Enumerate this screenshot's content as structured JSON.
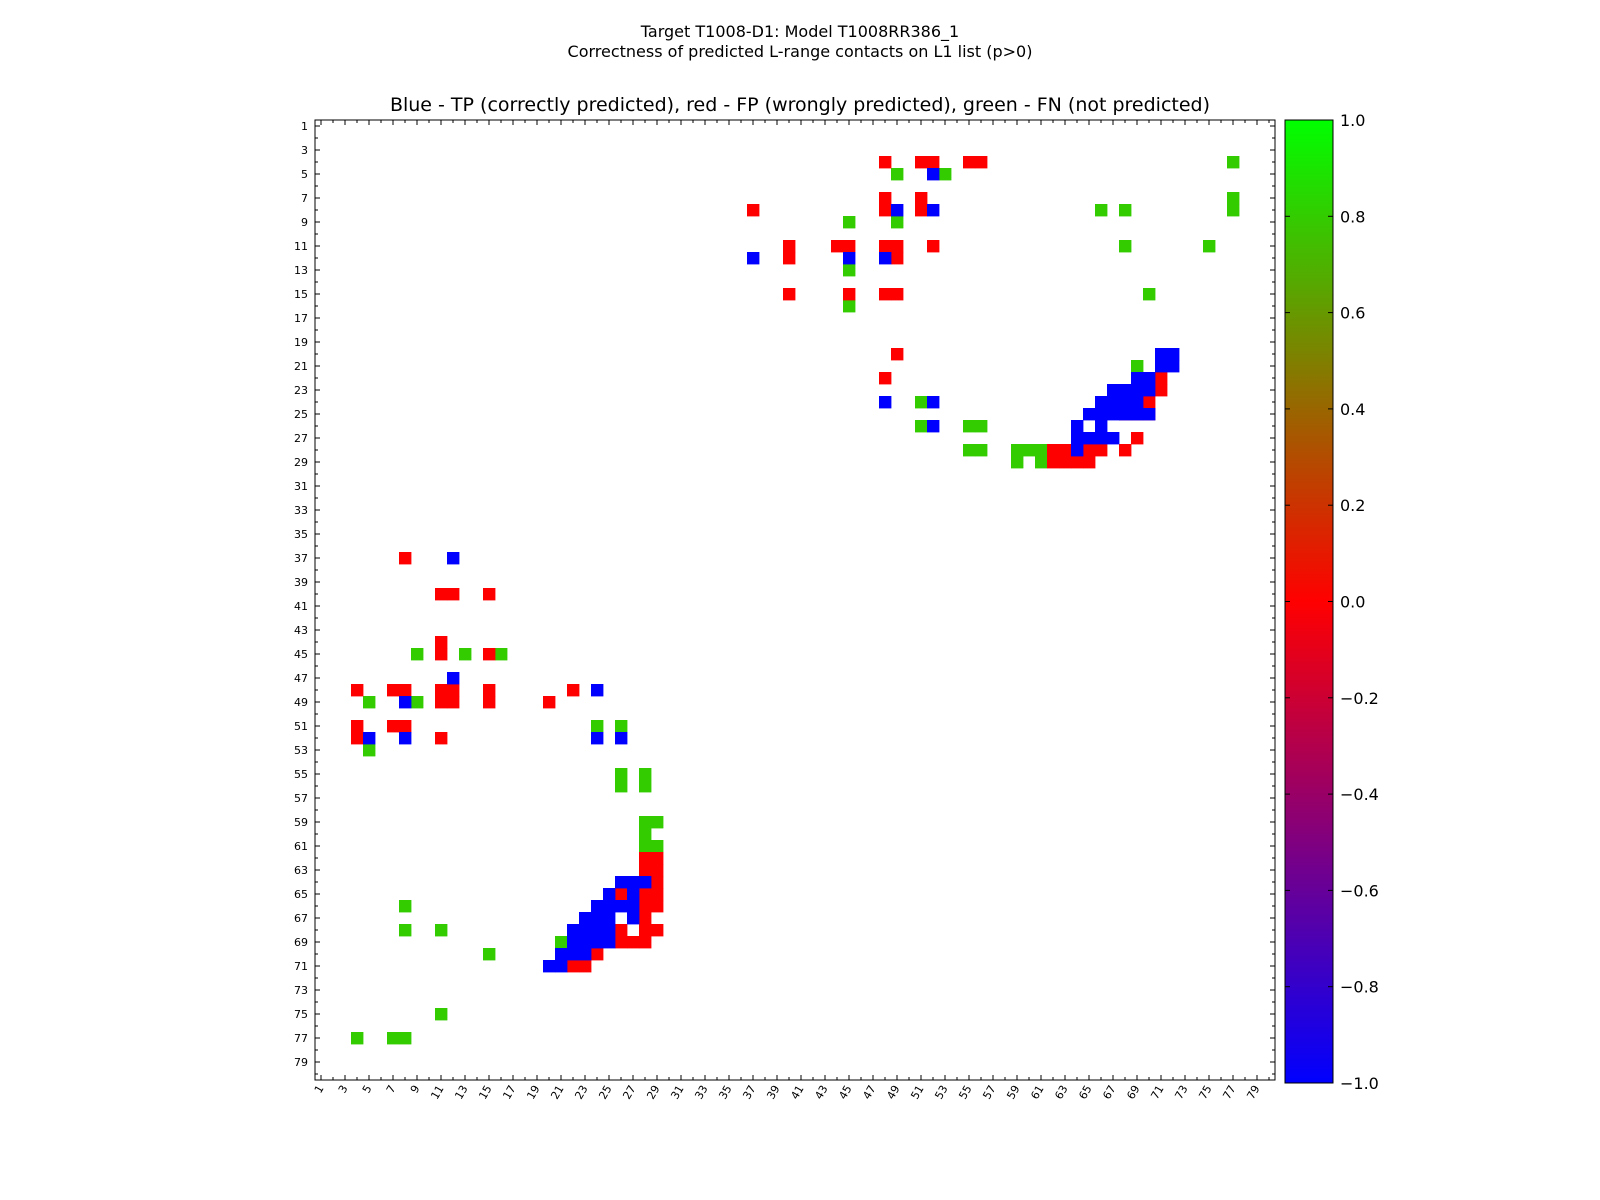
{
  "chart_data": {
    "type": "heatmap",
    "title": "Target T1008-D1: Model T1008RR386_1",
    "subtitle": "Correctness of predicted L-range contacts on L1 list (p>0)",
    "plot_title": "Blue - TP (correctly predicted), red - FP (wrongly predicted), green - FN (not predicted)",
    "n": 80,
    "xlabel": "",
    "ylabel": "",
    "x_tick_labels": [
      "1",
      "3",
      "5",
      "7",
      "9",
      "11",
      "13",
      "15",
      "17",
      "19",
      "21",
      "23",
      "25",
      "27",
      "29",
      "31",
      "33",
      "35",
      "37",
      "39",
      "41",
      "43",
      "45",
      "47",
      "49",
      "51",
      "53",
      "55",
      "57",
      "59",
      "61",
      "63",
      "65",
      "67",
      "69",
      "71",
      "73",
      "75",
      "77",
      "79"
    ],
    "y_tick_labels": [
      "1",
      "3",
      "5",
      "7",
      "9",
      "11",
      "13",
      "15",
      "17",
      "19",
      "21",
      "23",
      "25",
      "27",
      "29",
      "31",
      "33",
      "35",
      "37",
      "39",
      "41",
      "43",
      "45",
      "47",
      "49",
      "51",
      "53",
      "55",
      "57",
      "59",
      "61",
      "63",
      "65",
      "67",
      "69",
      "71",
      "73",
      "75",
      "77",
      "79"
    ],
    "colorbar": {
      "range": [
        -1.0,
        1.0
      ],
      "tick_labels": [
        "1.0",
        "0.8",
        "0.6",
        "0.4",
        "0.2",
        "0.0",
        "−0.2",
        "−0.4",
        "−0.6",
        "−0.8",
        "−1.0"
      ]
    },
    "colors": {
      "TP": "#0000ff",
      "FP": "#ff0000",
      "FN": "#33cc00"
    },
    "cells": {
      "TP": [
        [
          5,
          52
        ],
        [
          8,
          49
        ],
        [
          8,
          52
        ],
        [
          12,
          37
        ],
        [
          12,
          45
        ],
        [
          12,
          48
        ],
        [
          20,
          71
        ],
        [
          20,
          72
        ],
        [
          21,
          71
        ],
        [
          21,
          72
        ],
        [
          22,
          69
        ],
        [
          22,
          70
        ],
        [
          23,
          67
        ],
        [
          23,
          68
        ],
        [
          23,
          69
        ],
        [
          23,
          70
        ],
        [
          24,
          48
        ],
        [
          24,
          52
        ],
        [
          24,
          66
        ],
        [
          24,
          67
        ],
        [
          24,
          68
        ],
        [
          24,
          69
        ],
        [
          25,
          65
        ],
        [
          25,
          66
        ],
        [
          25,
          67
        ],
        [
          25,
          68
        ],
        [
          25,
          69
        ],
        [
          25,
          70
        ],
        [
          26,
          52
        ],
        [
          26,
          64
        ],
        [
          26,
          66
        ],
        [
          27,
          64
        ],
        [
          27,
          65
        ],
        [
          27,
          66
        ],
        [
          27,
          67
        ],
        [
          28,
          64
        ],
        [
          37,
          12
        ],
        [
          47,
          12
        ],
        [
          48,
          24
        ],
        [
          49,
          8
        ],
        [
          52,
          5
        ],
        [
          52,
          8
        ],
        [
          52,
          24
        ],
        [
          52,
          26
        ],
        [
          64,
          26
        ],
        [
          64,
          27
        ],
        [
          64,
          28
        ],
        [
          65,
          25
        ],
        [
          65,
          27
        ],
        [
          66,
          24
        ],
        [
          66,
          25
        ],
        [
          66,
          26
        ],
        [
          66,
          27
        ],
        [
          67,
          23
        ],
        [
          67,
          24
        ],
        [
          67,
          25
        ],
        [
          67,
          27
        ],
        [
          68,
          22
        ],
        [
          68,
          23
        ],
        [
          68,
          24
        ],
        [
          68,
          25
        ],
        [
          69,
          22
        ],
        [
          69,
          23
        ],
        [
          69,
          24
        ],
        [
          69,
          25
        ],
        [
          70,
          21
        ],
        [
          70,
          22
        ],
        [
          70,
          23
        ],
        [
          71,
          20
        ],
        [
          71,
          21
        ]
      ],
      "FP": [
        [
          4,
          48
        ],
        [
          4,
          51
        ],
        [
          4,
          52
        ],
        [
          4,
          55
        ],
        [
          4,
          56
        ],
        [
          7,
          48
        ],
        [
          7,
          51
        ],
        [
          8,
          37
        ],
        [
          8,
          48
        ],
        [
          8,
          51
        ],
        [
          11,
          40
        ],
        [
          11,
          44
        ],
        [
          11,
          45
        ],
        [
          11,
          48
        ],
        [
          11,
          49
        ],
        [
          11,
          52
        ],
        [
          12,
          40
        ],
        [
          12,
          49
        ],
        [
          15,
          40
        ],
        [
          15,
          45
        ],
        [
          15,
          48
        ],
        [
          15,
          49
        ],
        [
          20,
          49
        ],
        [
          22,
          48
        ],
        [
          22,
          71
        ],
        [
          23,
          71
        ],
        [
          24,
          70
        ],
        [
          25,
          66
        ],
        [
          25,
          68
        ],
        [
          25,
          69
        ],
        [
          25,
          70
        ],
        [
          27,
          69
        ],
        [
          28,
          62
        ],
        [
          28,
          63
        ],
        [
          28,
          64
        ],
        [
          28,
          65
        ],
        [
          28,
          66
        ],
        [
          28,
          68
        ],
        [
          29,
          62
        ],
        [
          29,
          63
        ],
        [
          29,
          64
        ],
        [
          29,
          65
        ],
        [
          37,
          8
        ],
        [
          40,
          11
        ],
        [
          40,
          12
        ],
        [
          40,
          15
        ],
        [
          44,
          11
        ],
        [
          45,
          11
        ],
        [
          45,
          15
        ],
        [
          48,
          4
        ],
        [
          48,
          7
        ],
        [
          48,
          8
        ],
        [
          48,
          11
        ],
        [
          48,
          12
        ],
        [
          48,
          15
        ],
        [
          48,
          22
        ],
        [
          49,
          11
        ],
        [
          49,
          12
        ],
        [
          49,
          15
        ],
        [
          49,
          20
        ],
        [
          51,
          4
        ],
        [
          51,
          7
        ],
        [
          51,
          8
        ],
        [
          52,
          4
        ],
        [
          52,
          11
        ],
        [
          65,
          26
        ],
        [
          66,
          28
        ],
        [
          66,
          29
        ],
        [
          63,
          28
        ],
        [
          64,
          28
        ],
        [
          64,
          29
        ],
        [
          62,
          28
        ],
        [
          62,
          29
        ],
        [
          63,
          29
        ],
        [
          65,
          28
        ],
        [
          65,
          29
        ],
        [
          67,
          28
        ],
        [
          68,
          26
        ],
        [
          68,
          28
        ],
        [
          68,
          29
        ],
        [
          69,
          26
        ],
        [
          69,
          27
        ],
        [
          69,
          28
        ],
        [
          70,
          24
        ],
        [
          71,
          22
        ],
        [
          71,
          23
        ]
      ],
      "FN": [
        [
          4,
          77
        ],
        [
          5,
          49
        ],
        [
          5,
          53
        ],
        [
          8,
          66
        ],
        [
          8,
          68
        ],
        [
          8,
          77
        ],
        [
          9,
          45
        ],
        [
          9,
          49
        ],
        [
          11,
          68
        ],
        [
          11,
          75
        ],
        [
          13,
          45
        ],
        [
          16,
          45
        ],
        [
          21,
          69
        ],
        [
          24,
          51
        ],
        [
          26,
          51
        ],
        [
          26,
          55
        ],
        [
          26,
          56
        ],
        [
          28,
          55
        ],
        [
          28,
          56
        ],
        [
          28,
          59
        ],
        [
          28,
          60
        ],
        [
          28,
          61
        ],
        [
          29,
          59
        ],
        [
          29,
          61
        ],
        [
          15,
          70
        ],
        [
          7,
          77
        ],
        [
          45,
          9
        ],
        [
          45,
          13
        ],
        [
          45,
          16
        ],
        [
          49,
          5
        ],
        [
          49,
          9
        ],
        [
          51,
          24
        ],
        [
          51,
          26
        ],
        [
          53,
          5
        ],
        [
          55,
          26
        ],
        [
          55,
          28
        ],
        [
          56,
          26
        ],
        [
          56,
          28
        ],
        [
          59,
          28
        ],
        [
          59,
          29
        ],
        [
          60,
          28
        ],
        [
          61,
          28
        ],
        [
          61,
          29
        ],
        [
          66,
          8
        ],
        [
          68,
          8
        ],
        [
          68,
          11
        ],
        [
          69,
          21
        ],
        [
          70,
          15
        ],
        [
          75,
          11
        ],
        [
          77,
          4
        ],
        [
          77,
          7
        ],
        [
          77,
          8
        ]
      ]
    }
  }
}
